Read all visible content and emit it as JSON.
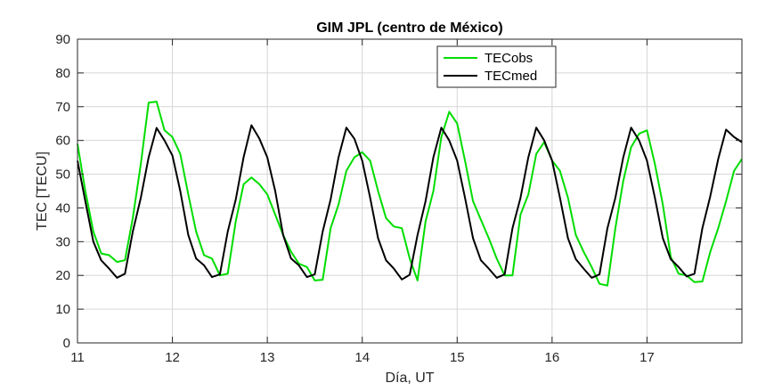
{
  "chart_data": {
    "type": "line",
    "title": "GIM JPL (centro de México)",
    "xlabel": "Día, UT",
    "ylabel": "TEC [TECU]",
    "xlim": [
      11,
      18
    ],
    "ylim": [
      0,
      90
    ],
    "xticks": [
      11,
      12,
      13,
      14,
      15,
      16,
      17
    ],
    "yticks": [
      0,
      10,
      20,
      30,
      40,
      50,
      60,
      70,
      80,
      90
    ],
    "grid": true,
    "legend": "top-right",
    "series": [
      {
        "name": "TECobs",
        "color": "#00dd00",
        "points": [
          [
            11.0,
            59
          ],
          [
            11.083,
            45
          ],
          [
            11.167,
            33
          ],
          [
            11.25,
            26.5
          ],
          [
            11.333,
            26
          ],
          [
            11.417,
            24
          ],
          [
            11.5,
            24.5
          ],
          [
            11.583,
            37
          ],
          [
            11.667,
            53
          ],
          [
            11.75,
            71.2
          ],
          [
            11.833,
            71.5
          ],
          [
            11.917,
            63
          ],
          [
            12.0,
            61
          ],
          [
            12.083,
            56
          ],
          [
            12.167,
            44
          ],
          [
            12.25,
            33
          ],
          [
            12.333,
            26
          ],
          [
            12.417,
            25
          ],
          [
            12.5,
            20
          ],
          [
            12.583,
            20.5
          ],
          [
            12.667,
            36
          ],
          [
            12.75,
            47
          ],
          [
            12.833,
            49
          ],
          [
            12.917,
            47
          ],
          [
            13.0,
            44
          ],
          [
            13.083,
            38
          ],
          [
            13.167,
            32
          ],
          [
            13.25,
            27
          ],
          [
            13.333,
            23.5
          ],
          [
            13.417,
            22.5
          ],
          [
            13.5,
            18.5
          ],
          [
            13.583,
            18.7
          ],
          [
            13.667,
            34
          ],
          [
            13.75,
            41
          ],
          [
            13.833,
            51
          ],
          [
            13.917,
            55
          ],
          [
            14.0,
            56.5
          ],
          [
            14.083,
            54
          ],
          [
            14.167,
            45
          ],
          [
            14.25,
            37
          ],
          [
            14.333,
            34.5
          ],
          [
            14.417,
            34
          ],
          [
            14.5,
            25
          ],
          [
            14.583,
            18.5
          ],
          [
            14.667,
            36
          ],
          [
            14.75,
            45
          ],
          [
            14.833,
            61
          ],
          [
            14.917,
            68.5
          ],
          [
            15.0,
            65
          ],
          [
            15.083,
            54
          ],
          [
            15.167,
            42
          ],
          [
            15.25,
            36.5
          ],
          [
            15.333,
            31
          ],
          [
            15.417,
            25
          ],
          [
            15.5,
            20
          ],
          [
            15.583,
            20
          ],
          [
            15.667,
            38
          ],
          [
            15.75,
            44
          ],
          [
            15.833,
            56
          ],
          [
            15.917,
            59.5
          ],
          [
            16.0,
            54
          ],
          [
            16.083,
            51
          ],
          [
            16.167,
            43
          ],
          [
            16.25,
            32
          ],
          [
            16.333,
            27
          ],
          [
            16.417,
            22.5
          ],
          [
            16.5,
            17.5
          ],
          [
            16.583,
            17
          ],
          [
            16.667,
            34
          ],
          [
            16.75,
            48
          ],
          [
            16.833,
            58
          ],
          [
            16.917,
            62
          ],
          [
            17.0,
            63
          ],
          [
            17.083,
            53
          ],
          [
            17.167,
            41
          ],
          [
            17.25,
            25.5
          ],
          [
            17.333,
            20.5
          ],
          [
            17.417,
            20
          ],
          [
            17.5,
            18
          ],
          [
            17.583,
            18.2
          ],
          [
            17.667,
            27
          ],
          [
            17.75,
            34
          ],
          [
            17.833,
            42
          ],
          [
            17.917,
            51
          ],
          [
            18.0,
            54.5
          ]
        ]
      },
      {
        "name": "TECmed",
        "color": "#000000",
        "points": [
          [
            11.0,
            54
          ],
          [
            11.083,
            42
          ],
          [
            11.167,
            30
          ],
          [
            11.25,
            24.5
          ],
          [
            11.333,
            22
          ],
          [
            11.417,
            19.3
          ],
          [
            11.5,
            20.5
          ],
          [
            11.583,
            33
          ],
          [
            11.667,
            43
          ],
          [
            11.75,
            55
          ],
          [
            11.833,
            63.7
          ],
          [
            11.917,
            60
          ],
          [
            12.0,
            55.5
          ],
          [
            12.083,
            45
          ],
          [
            12.167,
            32
          ],
          [
            12.25,
            25
          ],
          [
            12.333,
            23
          ],
          [
            12.417,
            19.5
          ],
          [
            12.5,
            20.3
          ],
          [
            12.583,
            33
          ],
          [
            12.667,
            42.5
          ],
          [
            12.75,
            55
          ],
          [
            12.833,
            64.5
          ],
          [
            12.917,
            60.5
          ],
          [
            13.0,
            55
          ],
          [
            13.083,
            45
          ],
          [
            13.167,
            32
          ],
          [
            13.25,
            25
          ],
          [
            13.333,
            23
          ],
          [
            13.417,
            19.5
          ],
          [
            13.5,
            20.3
          ],
          [
            13.583,
            33
          ],
          [
            13.667,
            42.5
          ],
          [
            13.75,
            55
          ],
          [
            13.833,
            63.8
          ],
          [
            13.917,
            60.5
          ],
          [
            14.0,
            54
          ],
          [
            14.083,
            43
          ],
          [
            14.167,
            31
          ],
          [
            14.25,
            24.5
          ],
          [
            14.333,
            22
          ],
          [
            14.417,
            18.8
          ],
          [
            14.5,
            20.2
          ],
          [
            14.583,
            32
          ],
          [
            14.667,
            42
          ],
          [
            14.75,
            55
          ],
          [
            14.833,
            63.8
          ],
          [
            14.917,
            60
          ],
          [
            15.0,
            54
          ],
          [
            15.083,
            43
          ],
          [
            15.167,
            31
          ],
          [
            15.25,
            24.5
          ],
          [
            15.333,
            22
          ],
          [
            15.417,
            19.3
          ],
          [
            15.5,
            20.3
          ],
          [
            15.583,
            34
          ],
          [
            15.667,
            43
          ],
          [
            15.75,
            55
          ],
          [
            15.833,
            63.8
          ],
          [
            15.917,
            60
          ],
          [
            16.0,
            54
          ],
          [
            16.083,
            43
          ],
          [
            16.167,
            31
          ],
          [
            16.25,
            24.8
          ],
          [
            16.333,
            22
          ],
          [
            16.417,
            19.3
          ],
          [
            16.5,
            20.3
          ],
          [
            16.583,
            34
          ],
          [
            16.667,
            43
          ],
          [
            16.75,
            55
          ],
          [
            16.833,
            63.8
          ],
          [
            16.917,
            60
          ],
          [
            17.0,
            54
          ],
          [
            17.083,
            43
          ],
          [
            17.167,
            31
          ],
          [
            17.25,
            24.8
          ],
          [
            17.333,
            22.5
          ],
          [
            17.417,
            19.7
          ],
          [
            17.5,
            20.5
          ],
          [
            17.583,
            34
          ],
          [
            17.667,
            43.5
          ],
          [
            17.75,
            54.5
          ],
          [
            17.833,
            63.2
          ],
          [
            17.917,
            61
          ],
          [
            18.0,
            59.5
          ]
        ]
      }
    ]
  }
}
